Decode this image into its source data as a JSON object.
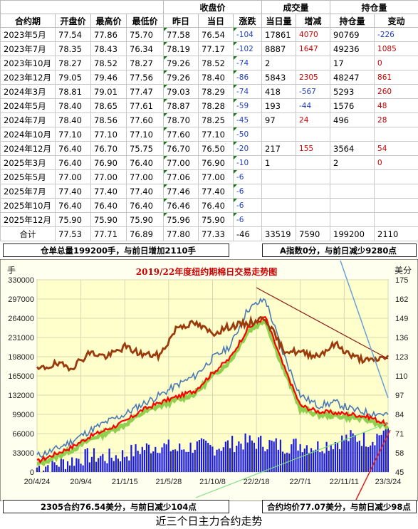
{
  "table": {
    "group_headers": {
      "settle": "收盘价",
      "volume": "成交量",
      "oi": "持仓量"
    },
    "columns": [
      "合约期",
      "开盘价",
      "最高价",
      "最低价",
      "昨日",
      "当日",
      "涨跌",
      "当日量",
      "增减",
      "持仓量",
      "变动"
    ],
    "rows": [
      {
        "name": "2023年5月",
        "open": "77.54",
        "high": "77.86",
        "low": "75.70",
        "prev": "77.58",
        "today": "76.54",
        "chg": "-104",
        "vol": "17861",
        "vol_chg": "4070",
        "oi": "90769",
        "oi_chg": "-226"
      },
      {
        "name": "2023年7月",
        "open": "78.35",
        "high": "78.43",
        "low": "76.34",
        "prev": "78.19",
        "today": "77.17",
        "chg": "-102",
        "vol": "8887",
        "vol_chg": "1647",
        "oi": "49236",
        "oi_chg": "1085"
      },
      {
        "name": "2023年10月",
        "open": "78.27",
        "high": "78.52",
        "low": "78.27",
        "prev": "79.26",
        "today": "78.52",
        "chg": "-74",
        "vol": "2",
        "vol_chg": "",
        "oi": "17",
        "oi_chg": "0"
      },
      {
        "name": "2023年12月",
        "open": "79.05",
        "high": "79.46",
        "low": "77.56",
        "prev": "79.26",
        "today": "78.40",
        "chg": "-86",
        "vol": "5843",
        "vol_chg": "2305",
        "oi": "48247",
        "oi_chg": "861"
      },
      {
        "name": "2024年3月",
        "open": "78.81",
        "high": "79.01",
        "low": "77.47",
        "prev": "79.03",
        "today": "78.29",
        "chg": "-74",
        "vol": "418",
        "vol_chg": "-567",
        "oi": "5293",
        "oi_chg": "260"
      },
      {
        "name": "2024年5月",
        "open": "78.40",
        "high": "78.65",
        "low": "77.61",
        "prev": "78.87",
        "today": "78.28",
        "chg": "-59",
        "vol": "193",
        "vol_chg": "-44",
        "oi": "1576",
        "oi_chg": "48"
      },
      {
        "name": "2024年7月",
        "open": "78.40",
        "high": "78.56",
        "low": "77.60",
        "prev": "78.70",
        "today": "78.25",
        "chg": "-45",
        "vol": "97",
        "vol_chg": "24",
        "oi": "496",
        "oi_chg": "28"
      },
      {
        "name": "2024年10月",
        "open": "77.10",
        "high": "77.10",
        "low": "77.10",
        "prev": "77.60",
        "today": "77.10",
        "chg": "-50",
        "vol": "",
        "vol_chg": "",
        "oi": "",
        "oi_chg": ""
      },
      {
        "name": "2024年12月",
        "open": "76.40",
        "high": "76.70",
        "low": "75.75",
        "prev": "76.70",
        "today": "76.50",
        "chg": "-20",
        "vol": "217",
        "vol_chg": "155",
        "oi": "3564",
        "oi_chg": "54"
      },
      {
        "name": "2025年3月",
        "open": "76.40",
        "high": "76.90",
        "low": "76.40",
        "prev": "77.00",
        "today": "76.90",
        "chg": "-10",
        "vol": "1",
        "vol_chg": "",
        "oi": "2",
        "oi_chg": "0"
      },
      {
        "name": "2025年5月",
        "open": "77.00",
        "high": "77.00",
        "low": "77.00",
        "prev": "77.06",
        "today": "77.00",
        "chg": "-6",
        "vol": "",
        "vol_chg": "",
        "oi": "",
        "oi_chg": ""
      },
      {
        "name": "2025年7月",
        "open": "77.40",
        "high": "77.40",
        "low": "77.40",
        "prev": "77.46",
        "today": "77.40",
        "chg": "-6",
        "vol": "",
        "vol_chg": "",
        "oi": "",
        "oi_chg": ""
      },
      {
        "name": "2025年10月",
        "open": "76.40",
        "high": "76.40",
        "low": "76.40",
        "prev": "76.46",
        "today": "76.40",
        "chg": "-6",
        "vol": "",
        "vol_chg": "",
        "oi": "",
        "oi_chg": ""
      },
      {
        "name": "2025年12月",
        "open": "75.90",
        "high": "75.90",
        "low": "75.90",
        "prev": "75.96",
        "today": "75.90",
        "chg": "-6",
        "vol": "",
        "vol_chg": "",
        "oi": "",
        "oi_chg": ""
      }
    ],
    "total": {
      "name": "合计",
      "open": "77.53",
      "high": "77.71",
      "low": "76.89",
      "prev": "77.80",
      "today": "77.33",
      "chg": "-46",
      "vol": "33519",
      "vol_chg": "7590",
      "oi": "199200",
      "oi_chg": "2110"
    }
  },
  "summary": {
    "warehouse": "仓单总量199200手，与前日增加2110手",
    "a_index": "A指数0分，与前日减少9280点",
    "contract_2305": "2305合约76.54美分，与前日减少104点",
    "avg_price": "合约均价77.07美分，与前日减少98点"
  },
  "footer_title": "近三个日主力合约走势",
  "colors": {
    "chart_bg": "#ffffcc",
    "volume": "#1a1adf",
    "oi": "#9b3a0b",
    "price_red": "#ff0000",
    "price_green": "#8fd14f",
    "blue_line": "#4a7ab5",
    "title": "#cc0000",
    "up": "#cc0000",
    "down": "#1f3fbf"
  },
  "chart_data": {
    "type": "line",
    "title": "2019/22年度纽约期棉日交易走势图",
    "ylabel_left": "手",
    "ylabel_right": "美分",
    "x_ticks": [
      "20/4/24",
      "20/9/4",
      "21/1/15",
      "21/5/28",
      "21/10/8",
      "22/2/18",
      "22/7/1",
      "22/11/11",
      "23/3/24"
    ],
    "y_left_ticks": [
      "0",
      "33000",
      "66000",
      "99000",
      "132000",
      "165000",
      "198000",
      "231000",
      "264000",
      "297000",
      "330000"
    ],
    "y_right_ticks": [
      "45",
      "58",
      "71",
      "84",
      "97",
      "110",
      "123",
      "136",
      "149",
      "162",
      "175"
    ],
    "ylim_left": [
      0,
      330000
    ],
    "ylim_right": [
      45,
      175
    ],
    "grid": true,
    "series": [
      {
        "kind": "bars",
        "axis": "left",
        "x": [
          0,
          0.05,
          0.1,
          0.15,
          0.2,
          0.25,
          0.3,
          0.35,
          0.4,
          0.45,
          0.5,
          0.55,
          0.6,
          0.65,
          0.7,
          0.75,
          0.8,
          0.85,
          0.9,
          0.95,
          1.0
        ],
        "y": [
          8000,
          14000,
          20000,
          28000,
          25000,
          30000,
          40000,
          46000,
          38000,
          45000,
          42000,
          48000,
          52000,
          50000,
          45000,
          48000,
          44000,
          52000,
          60000,
          55000,
          75000
        ]
      },
      {
        "kind": "line",
        "axis": "left",
        "x": [
          0,
          0.05,
          0.1,
          0.15,
          0.2,
          0.25,
          0.3,
          0.35,
          0.4,
          0.45,
          0.5,
          0.55,
          0.6,
          0.65,
          0.7,
          0.75,
          0.8,
          0.85,
          0.9,
          0.95,
          1.0
        ],
        "y": [
          175000,
          185000,
          180000,
          205000,
          198000,
          215000,
          202000,
          200000,
          250000,
          255000,
          238000,
          250000,
          255000,
          265000,
          210000,
          205000,
          200000,
          220000,
          198000,
          190000,
          199200
        ]
      },
      {
        "kind": "line",
        "axis": "right",
        "x": [
          0,
          0.05,
          0.1,
          0.15,
          0.2,
          0.25,
          0.3,
          0.35,
          0.4,
          0.45,
          0.5,
          0.55,
          0.6,
          0.65,
          0.7,
          0.75,
          0.8,
          0.85,
          0.9,
          0.95,
          1.0
        ],
        "y": [
          52,
          57,
          62,
          69,
          74,
          79,
          87,
          92,
          96,
          100,
          112,
          122,
          142,
          150,
          118,
          90,
          86,
          85,
          84,
          82,
          77
        ]
      },
      {
        "kind": "line",
        "axis": "right",
        "x": [
          0,
          0.05,
          0.1,
          0.15,
          0.2,
          0.25,
          0.3,
          0.35,
          0.4,
          0.45,
          0.5,
          0.55,
          0.6,
          0.65,
          0.7,
          0.75,
          0.8,
          0.85,
          0.9,
          0.95,
          1.0
        ],
        "y": [
          56,
          60,
          66,
          73,
          79,
          84,
          91,
          97,
          104,
          110,
          122,
          130,
          155,
          162,
          126,
          97,
          90,
          92,
          87,
          85,
          84
        ]
      }
    ]
  }
}
